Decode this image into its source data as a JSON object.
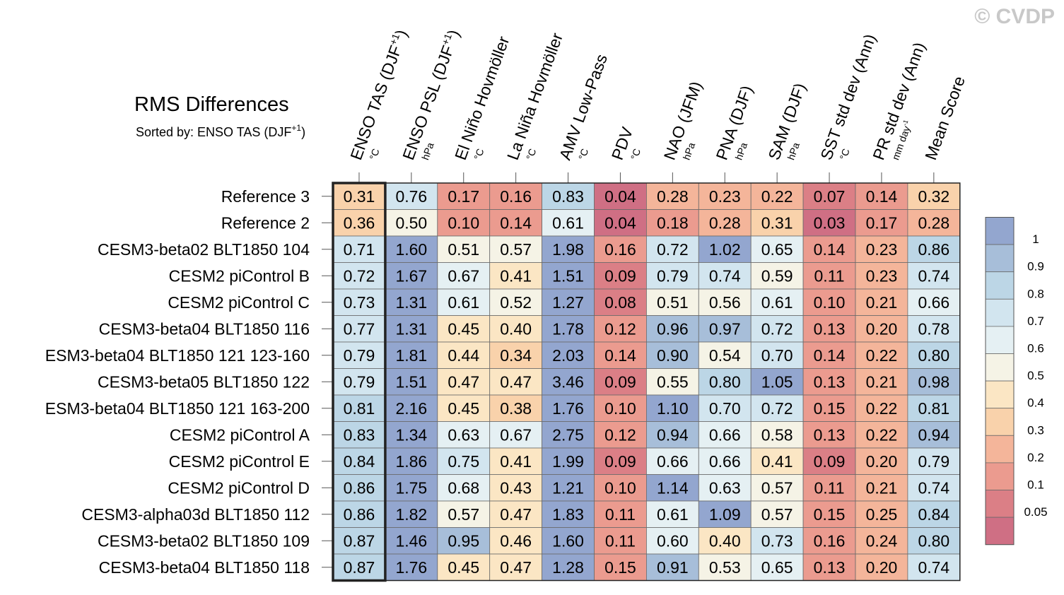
{
  "watermark": "© CVDP",
  "chart_data": {
    "type": "heatmap",
    "title": "RMS Differences",
    "subtitle_prefix": "Sorted by: ",
    "sorted_by": "ENSO TAS (DJF",
    "sorted_by_sup": "+1",
    "sorted_by_suffix": ")",
    "columns": [
      {
        "name": "ENSO TAS (DJF",
        "sup": "+1",
        "suffix": ")",
        "unit": "°C"
      },
      {
        "name": "ENSO PSL (DJF",
        "sup": "+1",
        "suffix": ")",
        "unit": "hPa"
      },
      {
        "name": "El Niño Hovmöller",
        "unit": "°C"
      },
      {
        "name": "La Niña Hovmöller",
        "unit": "°C"
      },
      {
        "name": "AMV Low-Pass",
        "unit": "°C"
      },
      {
        "name": "PDV",
        "unit": "°C"
      },
      {
        "name": "NAO (JFM)",
        "unit": "hPa"
      },
      {
        "name": "PNA (DJF)",
        "unit": "hPa"
      },
      {
        "name": "SAM (DJF)",
        "unit": "hPa"
      },
      {
        "name": "SST std dev (Ann)",
        "unit": "°C"
      },
      {
        "name": "PR std dev (Ann)",
        "unit": "mm day",
        "unit_sup": "-1"
      },
      {
        "name": "Mean Score",
        "unit": ""
      }
    ],
    "rows": [
      "Reference 3",
      "Reference 2",
      "CESM3-beta02 BLT1850 104",
      "CESM2 piControl B",
      "CESM2 piControl C",
      "CESM3-beta04 BLT1850 116",
      "ESM3-beta04 BLT1850 121 123-160",
      "CESM3-beta05 BLT1850 122",
      "ESM3-beta04 BLT1850 121 163-200",
      "CESM2 piControl A",
      "CESM2 piControl E",
      "CESM2 piControl D",
      "CESM3-alpha03d BLT1850 112",
      "CESM3-beta02 BLT1850 109",
      "CESM3-beta04 BLT1850 118"
    ],
    "values": [
      [
        "0.31",
        "0.76",
        "0.17",
        "0.16",
        "0.83",
        "0.04",
        "0.28",
        "0.23",
        "0.22",
        "0.07",
        "0.14",
        "0.32"
      ],
      [
        "0.36",
        "0.50",
        "0.10",
        "0.14",
        "0.61",
        "0.04",
        "0.18",
        "0.28",
        "0.31",
        "0.03",
        "0.17",
        "0.28"
      ],
      [
        "0.71",
        "1.60",
        "0.51",
        "0.57",
        "1.98",
        "0.16",
        "0.72",
        "1.02",
        "0.65",
        "0.14",
        "0.23",
        "0.86"
      ],
      [
        "0.72",
        "1.67",
        "0.67",
        "0.41",
        "1.51",
        "0.09",
        "0.79",
        "0.74",
        "0.59",
        "0.11",
        "0.23",
        "0.74"
      ],
      [
        "0.73",
        "1.31",
        "0.61",
        "0.52",
        "1.27",
        "0.08",
        "0.51",
        "0.56",
        "0.61",
        "0.10",
        "0.21",
        "0.66"
      ],
      [
        "0.77",
        "1.31",
        "0.45",
        "0.40",
        "1.78",
        "0.12",
        "0.96",
        "0.97",
        "0.72",
        "0.13",
        "0.20",
        "0.78"
      ],
      [
        "0.79",
        "1.81",
        "0.44",
        "0.34",
        "2.03",
        "0.14",
        "0.90",
        "0.54",
        "0.70",
        "0.14",
        "0.22",
        "0.80"
      ],
      [
        "0.79",
        "1.51",
        "0.47",
        "0.47",
        "3.46",
        "0.09",
        "0.55",
        "0.80",
        "1.05",
        "0.13",
        "0.21",
        "0.98"
      ],
      [
        "0.81",
        "2.16",
        "0.45",
        "0.38",
        "1.76",
        "0.10",
        "1.10",
        "0.70",
        "0.72",
        "0.15",
        "0.22",
        "0.81"
      ],
      [
        "0.83",
        "1.34",
        "0.63",
        "0.67",
        "2.75",
        "0.12",
        "0.94",
        "0.66",
        "0.58",
        "0.13",
        "0.22",
        "0.94"
      ],
      [
        "0.84",
        "1.86",
        "0.75",
        "0.41",
        "1.99",
        "0.09",
        "0.66",
        "0.66",
        "0.41",
        "0.09",
        "0.20",
        "0.79"
      ],
      [
        "0.86",
        "1.75",
        "0.68",
        "0.43",
        "1.21",
        "0.10",
        "1.14",
        "0.63",
        "0.57",
        "0.11",
        "0.21",
        "0.74"
      ],
      [
        "0.86",
        "1.82",
        "0.57",
        "0.47",
        "1.83",
        "0.11",
        "0.61",
        "1.09",
        "0.57",
        "0.15",
        "0.25",
        "0.84"
      ],
      [
        "0.87",
        "1.46",
        "0.95",
        "0.46",
        "1.60",
        "0.11",
        "0.60",
        "0.40",
        "0.73",
        "0.16",
        "0.24",
        "0.80"
      ],
      [
        "0.87",
        "1.76",
        "0.45",
        "0.47",
        "1.28",
        "0.15",
        "0.91",
        "0.53",
        "0.65",
        "0.13",
        "0.20",
        "0.74"
      ]
    ],
    "highlight_column": 0,
    "colorbar": {
      "levels": [
        "1",
        "0.9",
        "0.8",
        "0.7",
        "0.6",
        "0.5",
        "0.4",
        "0.3",
        "0.2",
        "0.1",
        "0.05"
      ],
      "colors": [
        "#93a6cf",
        "#a7bed9",
        "#bcd6e6",
        "#d2e5ef",
        "#e5f0f3",
        "#f5f3e6",
        "#fbe6c4",
        "#f9d2ab",
        "#f4b59a",
        "#eb9b8f",
        "#db7f86",
        "#cf6f84"
      ]
    }
  }
}
